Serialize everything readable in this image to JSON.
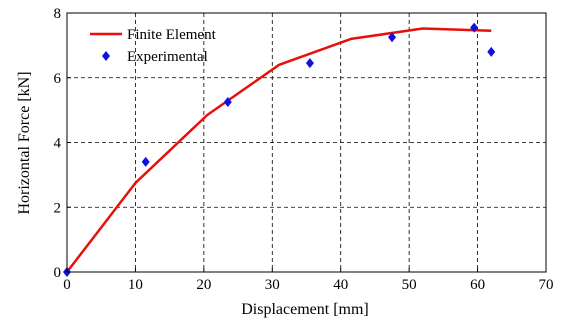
{
  "chart_data": {
    "type": "line",
    "xlabel": "Displacement [mm]",
    "ylabel": "Horizontal Force [kN]",
    "xlim": [
      0,
      70
    ],
    "ylim": [
      0,
      8
    ],
    "x_ticks": [
      0,
      10,
      20,
      30,
      40,
      50,
      60,
      70
    ],
    "y_ticks": [
      0,
      2,
      4,
      6,
      8
    ],
    "grid": true,
    "legend_position": "top-left",
    "series": [
      {
        "name": "Finite Element",
        "style": "line",
        "color": "#e8100a",
        "x": [
          0,
          10,
          20.5,
          31,
          41.5,
          52,
          62
        ],
        "y": [
          0,
          2.75,
          4.85,
          6.4,
          7.2,
          7.52,
          7.45
        ]
      },
      {
        "name": "Experimental",
        "style": "marker",
        "marker": "diamond",
        "color": "#1010e0",
        "x": [
          0,
          11.5,
          23.5,
          35.5,
          47.5,
          59.5,
          62
        ],
        "y": [
          0,
          3.4,
          5.25,
          6.45,
          7.25,
          7.55,
          6.8
        ]
      }
    ]
  }
}
